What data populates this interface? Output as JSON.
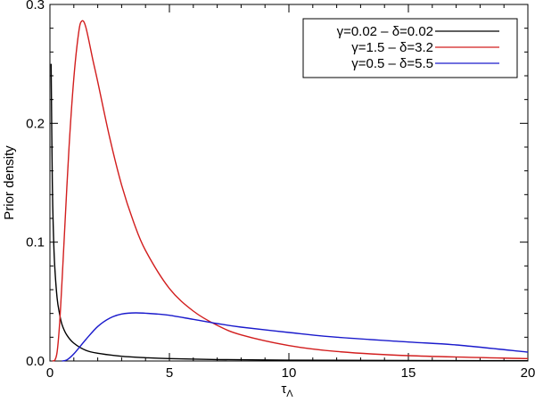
{
  "chart_data": {
    "type": "line",
    "xlabel": "τΛ",
    "xlabel_main": "τ",
    "xlabel_sub": "Λ",
    "ylabel": "Prior density",
    "xlim": [
      0,
      20
    ],
    "ylim": [
      0,
      0.3
    ],
    "xticks": [
      0,
      5,
      10,
      15,
      20
    ],
    "xtick_labels": [
      "0",
      "5",
      "10",
      "15",
      "20"
    ],
    "yticks": [
      0,
      0.1,
      0.2,
      0.3
    ],
    "ytick_labels": [
      "0.0",
      "0.1",
      "0.2",
      "0.3"
    ],
    "grid": false,
    "legend_position": "top-right",
    "series": [
      {
        "name": "γ=0.02 – δ=0.02",
        "color": "#000000",
        "x": [
          0.05,
          0.1,
          0.15,
          0.2,
          0.3,
          0.4,
          0.5,
          0.7,
          1,
          1.5,
          2,
          3,
          4,
          5,
          7,
          10,
          15,
          20
        ],
        "y": [
          0.25,
          0.15,
          0.105,
          0.08,
          0.053,
          0.04,
          0.031,
          0.022,
          0.015,
          0.009,
          0.0065,
          0.004,
          0.0028,
          0.002,
          0.0012,
          0.0007,
          0.0004,
          0.0002
        ]
      },
      {
        "name": "γ=1.5 – δ=3.2",
        "color": "#d21e1e",
        "x": [
          0.1,
          0.2,
          0.3,
          0.4,
          0.5,
          0.6,
          0.8,
          1.0,
          1.2,
          1.33,
          1.5,
          1.8,
          2,
          2.5,
          3,
          3.5,
          4,
          5,
          6,
          7,
          8,
          10,
          12,
          15,
          20
        ],
        "y": [
          0.0,
          0.0005,
          0.0075,
          0.03,
          0.065,
          0.104,
          0.18,
          0.238,
          0.276,
          0.286,
          0.281,
          0.253,
          0.235,
          0.188,
          0.148,
          0.117,
          0.093,
          0.061,
          0.042,
          0.03,
          0.022,
          0.013,
          0.008,
          0.0045,
          0.002
        ]
      },
      {
        "name": "γ=0.5 – δ=5.5",
        "color": "#1a1acc",
        "x": [
          0.5,
          0.7,
          1.0,
          1.5,
          2.0,
          2.5,
          3.0,
          3.6,
          4.5,
          5.0,
          6.0,
          7.0,
          8.0,
          10,
          12,
          15,
          17,
          20
        ],
        "y": [
          0.0,
          0.0008,
          0.006,
          0.018,
          0.029,
          0.036,
          0.0395,
          0.0405,
          0.0395,
          0.0385,
          0.035,
          0.0315,
          0.0285,
          0.024,
          0.02,
          0.016,
          0.0135,
          0.0075
        ]
      }
    ]
  }
}
